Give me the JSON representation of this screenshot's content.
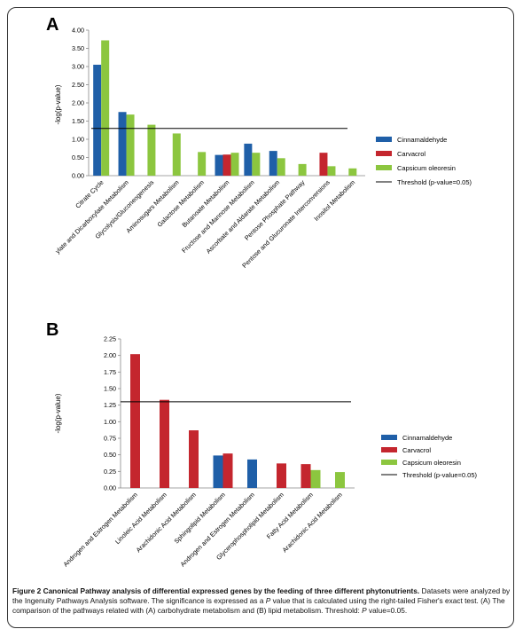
{
  "panels": [
    {
      "label": "A"
    },
    {
      "label": "B"
    }
  ],
  "colors": {
    "Cinnamaldehyde": "#1f5fa8",
    "Carvacrol": "#c4262e",
    "Capsicum oleoresin": "#8cc63f",
    "threshold": "#000000"
  },
  "chart_data": [
    {
      "type": "bar",
      "ylabel": "-log(p-value)",
      "ylim": [
        0,
        4.0
      ],
      "yticks": [
        "0.00",
        "0.50",
        "1.00",
        "1.50",
        "2.00",
        "2.50",
        "3.00",
        "3.50",
        "4.00"
      ],
      "ytick_values": [
        0,
        0.5,
        1,
        1.5,
        2,
        2.5,
        3,
        3.5,
        4
      ],
      "threshold": 1.3,
      "grid": false,
      "legend_position": "right",
      "categories": [
        "Citrate Cycle",
        "ylate and Dicarboxylate Metabolism",
        "Glycolysis/Gluconeogenesis",
        "Aminosugars Metabolism",
        "Galactose Metabolism",
        "Butanoate Metabolism",
        "Fructose and Mannose Metabolism",
        "Ascorbate and Aldarate Metabolism",
        "Pentose Phosphate Pathway",
        "Pentose and Glucuronate Interconversions",
        "Inositol Metabolism"
      ],
      "series": [
        {
          "name": "Cinnamaldehyde",
          "values": [
            3.05,
            1.75,
            null,
            null,
            null,
            0.57,
            0.88,
            0.68,
            null,
            null,
            null
          ]
        },
        {
          "name": "Carvacrol",
          "values": [
            null,
            null,
            null,
            null,
            null,
            0.58,
            null,
            null,
            null,
            0.63,
            null
          ]
        },
        {
          "name": "Capsicum oleoresin",
          "values": [
            3.72,
            1.68,
            1.4,
            1.16,
            0.65,
            0.63,
            0.63,
            0.48,
            0.32,
            0.26,
            0.2
          ]
        }
      ],
      "legend": [
        "Cinnamaldehyde",
        "Carvacrol",
        "Capsicum oleoresin",
        "Threshold (p-value=0.05)"
      ]
    },
    {
      "type": "bar",
      "ylabel": "-log(p-value)",
      "ylim": [
        0,
        2.25
      ],
      "yticks": [
        "0.00",
        "0.25",
        "0.50",
        "0.75",
        "1.00",
        "1.25",
        "1.50",
        "1.75",
        "2.00",
        "2.25"
      ],
      "ytick_values": [
        0,
        0.25,
        0.5,
        0.75,
        1,
        1.25,
        1.5,
        1.75,
        2,
        2.25
      ],
      "threshold": 1.3,
      "grid": false,
      "legend_position": "right",
      "categories": [
        "Androgen and Estrogen Metabolism",
        "Linoleic Acid Metabolism",
        "Arachidonic Acid Metabolism",
        "Sphingolipid Metabolism",
        "Androgen and Estrogen Metabolism",
        "Glycerophospholipid Metabolism",
        "Fatty Acid Metabolism",
        "Arachidonic Acid Metabolism"
      ],
      "series": [
        {
          "name": "Cinnamaldehyde",
          "values": [
            null,
            null,
            null,
            0.49,
            0.43,
            null,
            null,
            null
          ]
        },
        {
          "name": "Carvacrol",
          "values": [
            2.02,
            1.33,
            0.87,
            0.52,
            null,
            0.37,
            0.36,
            null
          ]
        },
        {
          "name": "Capsicum oleoresin",
          "values": [
            null,
            null,
            null,
            null,
            null,
            null,
            0.27,
            0.24
          ]
        }
      ],
      "legend": [
        "Cinnamaldehyde",
        "Carvacrol",
        "Capsicum oleoresin",
        "Threshold (p-value=0.05)"
      ]
    }
  ],
  "caption": {
    "title": "Figure 2 Canonical Pathway analysis of differential expressed genes by the feeding of three different phytonutrients.",
    "text_1": " Datasets were analyzed by the Ingenuity Pathways Analysis software. The significance is expressed as a ",
    "p_symbol": "P",
    "text_2": " value that is calculated using the right-tailed Fisher's exact test. (A) The comparison of the pathways related with (A) carbohydrate metabolism and (B) lipid metabolism. Threshold: ",
    "text_3": " value=0.05."
  }
}
